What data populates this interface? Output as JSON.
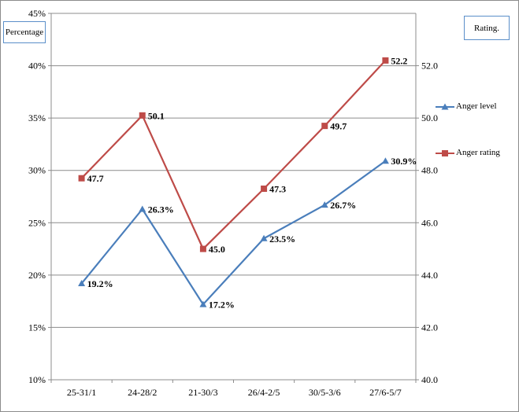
{
  "chart_data": {
    "type": "line",
    "categories": [
      "25-31/1",
      "24-28/2",
      "21-30/3",
      "26/4-2/5",
      "30/5-3/6",
      "27/6-5/7"
    ],
    "left_axis": {
      "label": "Percentage",
      "ylim": [
        10,
        45
      ],
      "ticks": [
        "10%",
        "15%",
        "20%",
        "25%",
        "30%",
        "35%",
        "40%",
        "45%"
      ]
    },
    "right_axis": {
      "label": "Rating.",
      "ylim": [
        40,
        54
      ],
      "ticks": [
        "40.0",
        "42.0",
        "44.0",
        "46.0",
        "48.0",
        "50.0",
        "52.0"
      ]
    },
    "series": [
      {
        "name": "Anger level",
        "axis": "left",
        "color": "#4a7ebb",
        "marker": "triangle",
        "values": [
          19.2,
          26.3,
          17.2,
          23.5,
          26.7,
          30.9
        ],
        "labels": [
          "19.2%",
          "26.3%",
          "17.2%",
          "23.5%",
          "26.7%",
          "30.9%"
        ]
      },
      {
        "name": "Anger rating",
        "axis": "right",
        "color": "#be4b48",
        "marker": "square",
        "values": [
          47.7,
          50.1,
          45.0,
          47.3,
          49.7,
          52.2
        ],
        "labels": [
          "47.7",
          "50.1",
          "45.0",
          "47.3",
          "49.7",
          "52.2"
        ]
      }
    ],
    "grid": true,
    "legend_position": "right"
  }
}
